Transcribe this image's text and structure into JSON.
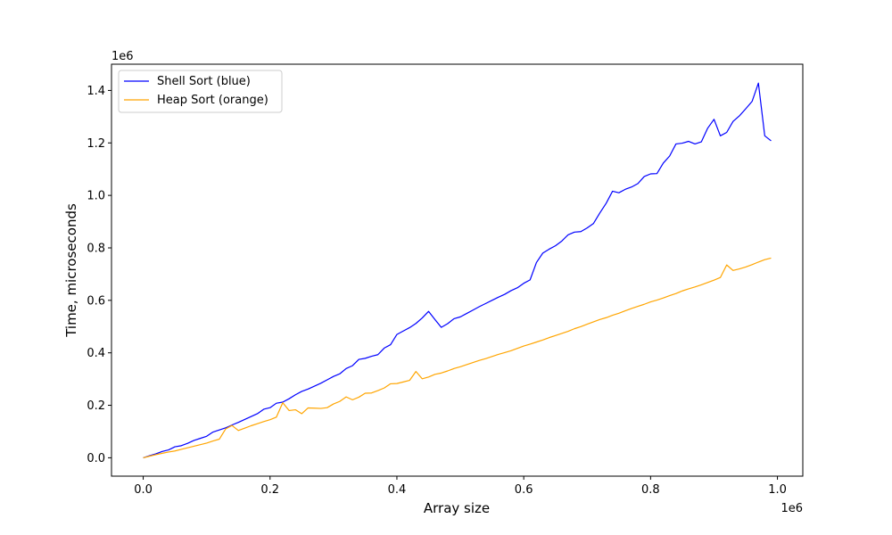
{
  "chart_data": {
    "type": "line",
    "xlabel": "Array size",
    "ylabel": "Time, microseconds",
    "x_offset_label": "1e6",
    "y_offset_label": "1e6",
    "xlim": [
      -50000,
      1040000
    ],
    "ylim": [
      -70000,
      1500000
    ],
    "x_ticks": [
      0,
      200000,
      400000,
      600000,
      800000,
      1000000
    ],
    "x_tick_labels": [
      "0.0",
      "0.2",
      "0.4",
      "0.6",
      "0.8",
      "1.0"
    ],
    "y_ticks": [
      0,
      200000,
      400000,
      600000,
      800000,
      1000000,
      1200000,
      1400000
    ],
    "y_tick_labels": [
      "0.0",
      "0.2",
      "0.4",
      "0.6",
      "0.8",
      "1.0",
      "1.2",
      "1.4"
    ],
    "grid": false,
    "legend_position": "top-left",
    "x": [
      0,
      10000,
      20000,
      30000,
      40000,
      50000,
      60000,
      70000,
      80000,
      90000,
      100000,
      110000,
      120000,
      130000,
      140000,
      150000,
      160000,
      170000,
      180000,
      190000,
      200000,
      210000,
      220000,
      230000,
      240000,
      250000,
      260000,
      270000,
      280000,
      290000,
      300000,
      310000,
      320000,
      330000,
      340000,
      350000,
      360000,
      370000,
      380000,
      390000,
      400000,
      410000,
      420000,
      430000,
      440000,
      450000,
      460000,
      470000,
      480000,
      490000,
      500000,
      510000,
      520000,
      530000,
      540000,
      550000,
      560000,
      570000,
      580000,
      590000,
      600000,
      610000,
      620000,
      630000,
      640000,
      650000,
      660000,
      670000,
      680000,
      690000,
      700000,
      710000,
      720000,
      730000,
      740000,
      750000,
      760000,
      770000,
      780000,
      790000,
      800000,
      810000,
      820000,
      830000,
      840000,
      850000,
      860000,
      870000,
      880000,
      890000,
      900000,
      910000,
      920000,
      930000,
      940000,
      950000,
      960000,
      970000,
      980000,
      990000
    ],
    "series": [
      {
        "name": "Shell Sort (blue)",
        "color": "#0000ff",
        "values": [
          0,
          8000,
          15000,
          24000,
          30000,
          42000,
          46000,
          55000,
          66000,
          74000,
          82000,
          98000,
          106000,
          114000,
          125000,
          135000,
          146000,
          157000,
          168000,
          185000,
          191000,
          208000,
          212000,
          225000,
          240000,
          253000,
          262000,
          273000,
          284000,
          297000,
          310000,
          320000,
          340000,
          351000,
          375000,
          379000,
          387000,
          393000,
          418000,
          431000,
          470000,
          483000,
          496000,
          512000,
          533000,
          558000,
          527000,
          497000,
          511000,
          530000,
          537000,
          550000,
          563000,
          576000,
          588000,
          600000,
          612000,
          623000,
          637000,
          648000,
          665000,
          678000,
          744000,
          780000,
          795000,
          808000,
          826000,
          850000,
          860000,
          862000,
          876000,
          893000,
          933000,
          970000,
          1016000,
          1010000,
          1023000,
          1032000,
          1045000,
          1072000,
          1082000,
          1083000,
          1123000,
          1150000,
          1196000,
          1199000,
          1206000,
          1196000,
          1204000,
          1256000,
          1290000,
          1227000,
          1240000,
          1282000,
          1303000,
          1330000,
          1358000,
          1428000,
          1227000,
          1208000
        ]
      },
      {
        "name": "Heap Sort (orange)",
        "color": "#ffa500",
        "values": [
          0,
          6000,
          12000,
          17000,
          22000,
          26000,
          32000,
          38000,
          44000,
          50000,
          56000,
          64000,
          71000,
          110000,
          123000,
          104000,
          113000,
          122000,
          130000,
          138000,
          145000,
          155000,
          210000,
          180000,
          183000,
          168000,
          190000,
          189000,
          188000,
          191000,
          205000,
          215000,
          232000,
          221000,
          231000,
          246000,
          247000,
          256000,
          266000,
          282000,
          283000,
          289000,
          295000,
          329000,
          301000,
          308000,
          318000,
          323000,
          331000,
          340000,
          347000,
          355000,
          363000,
          371000,
          378000,
          386000,
          394000,
          401000,
          408000,
          417000,
          426000,
          433000,
          441000,
          449000,
          458000,
          466000,
          474000,
          482000,
          492000,
          500000,
          509000,
          518000,
          527000,
          534000,
          543000,
          551000,
          560000,
          569000,
          577000,
          585000,
          594000,
          601000,
          609000,
          618000,
          626000,
          636000,
          644000,
          651000,
          659000,
          668000,
          677000,
          687000,
          735000,
          714000,
          720000,
          727000,
          736000,
          746000,
          755000,
          761000
        ]
      }
    ]
  }
}
